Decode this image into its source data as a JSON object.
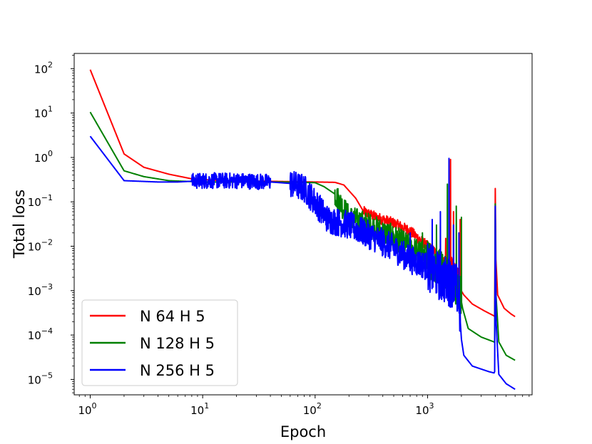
{
  "chart_data": {
    "type": "line",
    "title": "",
    "xlabel": "Epoch",
    "ylabel": "Total loss",
    "xscale": "log",
    "yscale": "log",
    "xlim": [
      0.72,
      8500
    ],
    "ylim": [
      4.5e-06,
      220
    ],
    "grid": false,
    "legend_position": "lower-left",
    "x_ticks": [
      {
        "value": 1,
        "base": "10",
        "exp": "0"
      },
      {
        "value": 10,
        "base": "10",
        "exp": "1"
      },
      {
        "value": 100,
        "base": "10",
        "exp": "2"
      },
      {
        "value": 1000,
        "base": "10",
        "exp": "3"
      }
    ],
    "y_ticks": [
      {
        "value": 1e-05,
        "base": "10",
        "exp": "−5"
      },
      {
        "value": 0.0001,
        "base": "10",
        "exp": "−4"
      },
      {
        "value": 0.001,
        "base": "10",
        "exp": "−3"
      },
      {
        "value": 0.01,
        "base": "10",
        "exp": "−2"
      },
      {
        "value": 0.1,
        "base": "10",
        "exp": "−1"
      },
      {
        "value": 1,
        "base": "10",
        "exp": "0"
      },
      {
        "value": 10,
        "base": "10",
        "exp": "1"
      },
      {
        "value": 100,
        "base": "10",
        "exp": "2"
      }
    ],
    "series": [
      {
        "name": "N 64 H 5",
        "color": "#ff0000",
        "points": [
          [
            1,
            95
          ],
          [
            2,
            1.2
          ],
          [
            3,
            0.6
          ],
          [
            5,
            0.42
          ],
          [
            8,
            0.33
          ],
          [
            15,
            0.3
          ],
          [
            40,
            0.29
          ],
          [
            100,
            0.28
          ],
          [
            150,
            0.275
          ],
          [
            180,
            0.24
          ],
          [
            230,
            0.12
          ],
          [
            270,
            0.06
          ],
          [
            350,
            0.045
          ],
          [
            500,
            0.033
          ],
          [
            700,
            0.022
          ],
          [
            1000,
            0.01
          ],
          [
            1300,
            0.006
          ],
          [
            1500,
            0.004
          ],
          [
            1800,
            0.002
          ],
          [
            1990,
            0.001
          ],
          [
            2100,
            0.0008
          ],
          [
            2500,
            0.0005
          ],
          [
            3200,
            0.00035
          ],
          [
            3900,
            0.00027
          ],
          [
            3950,
            0.00026
          ],
          [
            4000,
            0.2
          ],
          [
            4050,
            0.005
          ],
          [
            4200,
            0.0008
          ],
          [
            4800,
            0.0004
          ],
          [
            5500,
            0.0003
          ],
          [
            6000,
            0.00026
          ]
        ],
        "noise": [
          [
            270,
            1500,
            0.12
          ],
          [
            1500,
            2000,
            0.3
          ]
        ],
        "spikes": [
          [
            560,
            0.03
          ],
          [
            1100,
            0.012
          ],
          [
            1450,
            0.015
          ],
          [
            1600,
            0.9
          ],
          [
            1700,
            0.06
          ],
          [
            1950,
            0.04
          ]
        ]
      },
      {
        "name": "N 128 H 5",
        "color": "#008000",
        "points": [
          [
            1,
            10.5
          ],
          [
            2,
            0.5
          ],
          [
            3,
            0.37
          ],
          [
            5,
            0.3
          ],
          [
            10,
            0.28
          ],
          [
            50,
            0.28
          ],
          [
            100,
            0.27
          ],
          [
            120,
            0.22
          ],
          [
            150,
            0.15
          ],
          [
            200,
            0.045
          ],
          [
            300,
            0.03
          ],
          [
            500,
            0.016
          ],
          [
            800,
            0.008
          ],
          [
            1200,
            0.004
          ],
          [
            1600,
            0.002
          ],
          [
            1950,
            0.0008
          ],
          [
            2050,
            0.0004
          ],
          [
            2300,
            0.00014
          ],
          [
            3000,
            9e-05
          ],
          [
            3900,
            7e-05
          ],
          [
            3950,
            6.8e-05
          ],
          [
            4000,
            0.09
          ],
          [
            4060,
            0.0008
          ],
          [
            4300,
            7e-05
          ],
          [
            5000,
            3.5e-05
          ],
          [
            6000,
            2.7e-05
          ]
        ],
        "noise": [
          [
            150,
            1000,
            0.28
          ],
          [
            1000,
            2000,
            0.45
          ]
        ],
        "spikes": [
          [
            600,
            0.012
          ],
          [
            900,
            0.02
          ],
          [
            1200,
            0.03
          ],
          [
            1500,
            0.25
          ],
          [
            1800,
            0.08
          ],
          [
            2000,
            0.045
          ]
        ]
      },
      {
        "name": "N 256 H 5",
        "color": "#0000ff",
        "points": [
          [
            1,
            3
          ],
          [
            2,
            0.3
          ],
          [
            4,
            0.28
          ],
          [
            6,
            0.28
          ],
          [
            10,
            0.3
          ],
          [
            20,
            0.3
          ],
          [
            40,
            0.28
          ],
          [
            60,
            0.26
          ],
          [
            80,
            0.2
          ],
          [
            100,
            0.1
          ],
          [
            130,
            0.04
          ],
          [
            200,
            0.03
          ],
          [
            300,
            0.018
          ],
          [
            500,
            0.009
          ],
          [
            700,
            0.005
          ],
          [
            1000,
            0.0035
          ],
          [
            1300,
            0.002
          ],
          [
            1600,
            0.0015
          ],
          [
            1800,
            0.0012
          ],
          [
            1900,
            0.0006
          ],
          [
            2000,
            8e-05
          ],
          [
            2100,
            3.5e-05
          ],
          [
            2500,
            2e-05
          ],
          [
            3500,
            1.5e-05
          ],
          [
            3900,
            1.4e-05
          ],
          [
            3950,
            1.5e-05
          ],
          [
            4000,
            0.08
          ],
          [
            4070,
            0.0002
          ],
          [
            4300,
            1.3e-05
          ],
          [
            5000,
            8e-06
          ],
          [
            6000,
            6e-06
          ]
        ],
        "noise": [
          [
            8,
            40,
            0.18
          ],
          [
            60,
            1000,
            0.32
          ],
          [
            1000,
            1950,
            0.55
          ]
        ],
        "spikes": [
          [
            400,
            0.02
          ],
          [
            700,
            0.02
          ],
          [
            1100,
            0.04
          ],
          [
            1300,
            0.06
          ],
          [
            1550,
            0.95
          ],
          [
            1700,
            0.03
          ],
          [
            1900,
            0.02
          ]
        ]
      }
    ]
  }
}
